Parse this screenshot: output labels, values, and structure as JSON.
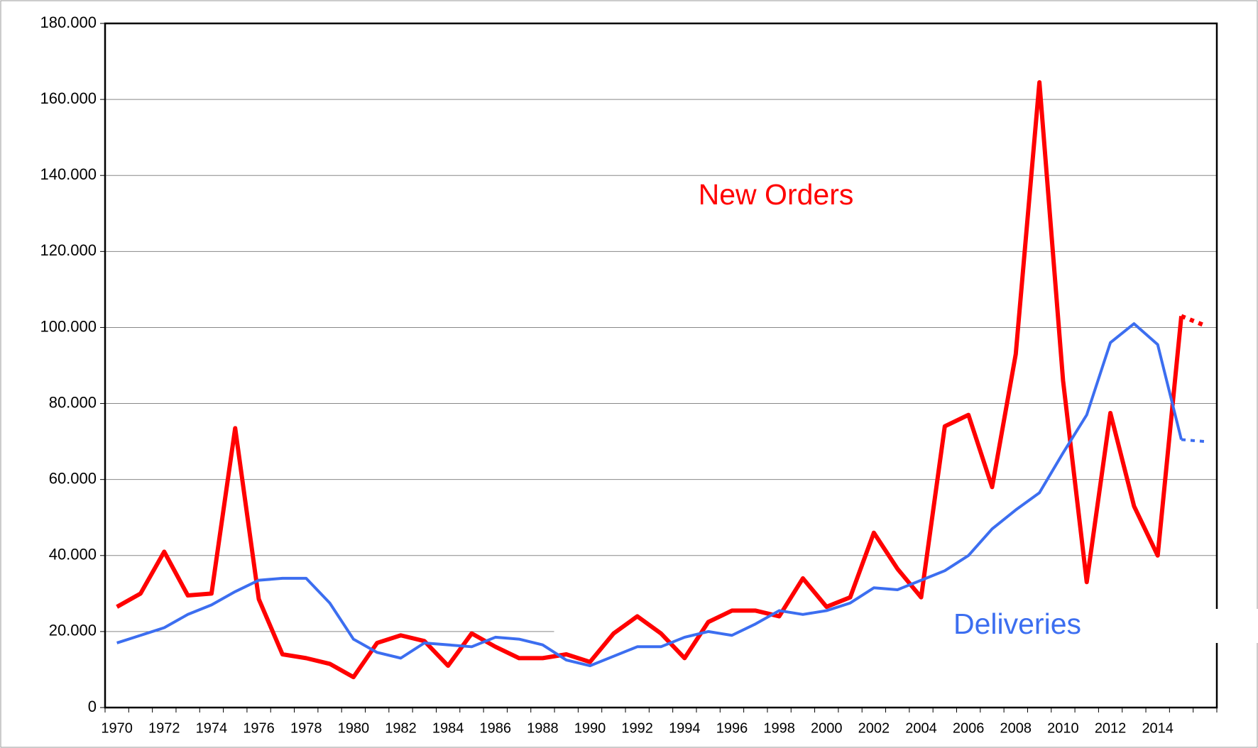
{
  "chart_data": {
    "type": "line",
    "categories": [
      "1970",
      null,
      "1972",
      null,
      "1974",
      null,
      "1976",
      null,
      "1978",
      null,
      "1980",
      null,
      "1982",
      null,
      "1984",
      null,
      "1986",
      null,
      "1988",
      null,
      "1990",
      null,
      "1992",
      null,
      "1994",
      null,
      "1996",
      null,
      "1998",
      null,
      "2000",
      null,
      "2002",
      null,
      "2004",
      null,
      "2006",
      null,
      "2008",
      null,
      "2010",
      null,
      "2012",
      null,
      "2014",
      null,
      null
    ],
    "series": [
      {
        "name": "New Orders",
        "color": "#ff0000",
        "dashed_tail": true,
        "values": [
          26500,
          30000,
          41000,
          29500,
          30000,
          73500,
          28500,
          14000,
          13000,
          11500,
          8000,
          17000,
          19000,
          17500,
          11000,
          19500,
          16000,
          13000,
          13000,
          14000,
          12000,
          19500,
          24000,
          19500,
          13000,
          22500,
          25500,
          25500,
          24000,
          34000,
          26500,
          29000,
          46000,
          36500,
          29000,
          74000,
          77000,
          58000,
          93000,
          164500,
          86000,
          33000,
          77500,
          53000,
          40000,
          103000,
          100500
        ]
      },
      {
        "name": "Deliveries",
        "color": "#3c6ef0",
        "dashed_tail": true,
        "values": [
          17000,
          19000,
          21000,
          24500,
          27000,
          30500,
          33500,
          34000,
          34000,
          27500,
          18000,
          14500,
          13000,
          17000,
          16500,
          16000,
          18500,
          18000,
          16500,
          12500,
          11000,
          13500,
          16000,
          16000,
          18500,
          20000,
          19000,
          22000,
          25500,
          24500,
          25500,
          27500,
          31500,
          31000,
          33500,
          36000,
          40000,
          47000,
          52000,
          56500,
          67000,
          77000,
          96000,
          101000,
          95500,
          70500,
          70000
        ]
      }
    ],
    "ylim": [
      0,
      180000
    ],
    "yticks": [
      0,
      {
        "value": 20000,
        "label": "20.000"
      },
      {
        "value": 40000,
        "label": "40.000"
      },
      {
        "value": 60000,
        "label": "60.000"
      },
      {
        "value": 80000,
        "label": "80.000"
      },
      {
        "value": 100000,
        "label": "100.000"
      },
      {
        "value": 120000,
        "label": "120.000"
      },
      {
        "value": 140000,
        "label": "140.000"
      },
      {
        "value": 160000,
        "label": "160.000"
      },
      {
        "value": 180000,
        "label": "180.000"
      }
    ],
    "grid": true
  }
}
